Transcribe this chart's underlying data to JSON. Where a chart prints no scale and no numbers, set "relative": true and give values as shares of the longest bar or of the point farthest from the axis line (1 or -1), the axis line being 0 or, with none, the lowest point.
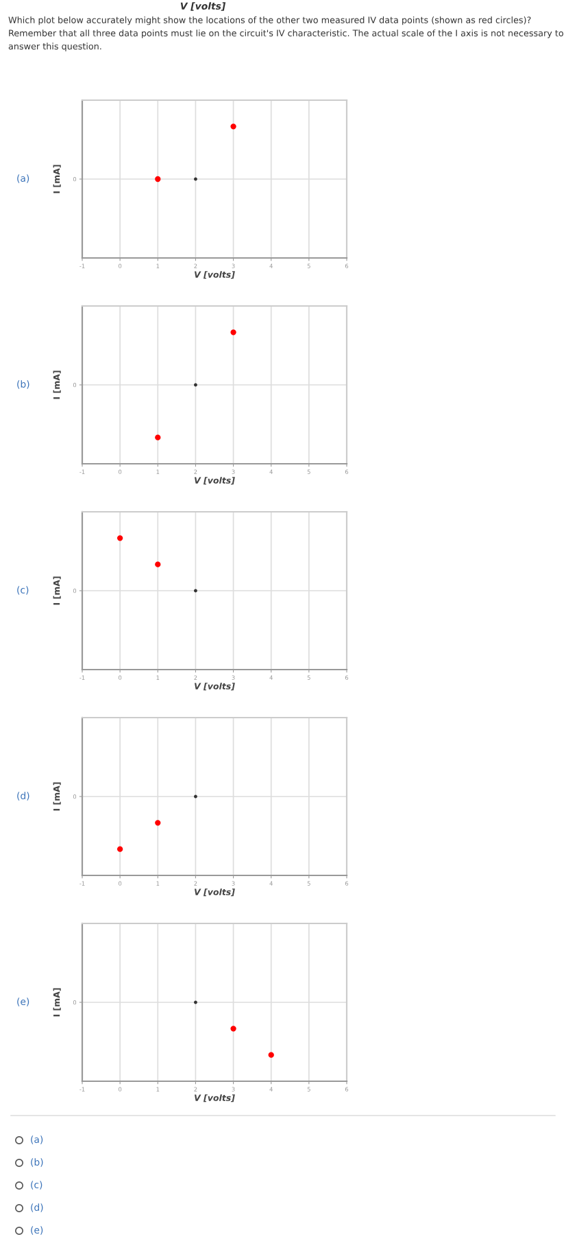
{
  "chart_data": [
    {
      "type": "scatter",
      "title": "(a)",
      "xlabel": "V [volts]",
      "ylabel": "I [mA]",
      "relative": true,
      "xlim": [
        -1,
        6
      ],
      "xticks": [
        -1,
        0,
        1,
        2,
        3,
        4,
        5,
        6
      ],
      "grid": "x",
      "marker": "circle",
      "annotations": [
        "V [volts]",
        "Which plot below accurately might show the locations of the other two measured IV data points (shown as red circles)? Remember that all three data points must lie on the circuit's IV characteristic. The actual scale of the I axis is not necessary to answer this question."
      ],
      "ref_lines": [
        {
          "axis": "y",
          "value": 0,
          "label": "0"
        }
      ],
      "series": [
        {
          "color": "#ff0000",
          "x": [
            1,
            3
          ],
          "values": [
            0,
            1
          ]
        },
        {
          "color": "#333333",
          "x": [
            2
          ],
          "values": [
            0
          ]
        }
      ]
    },
    {
      "type": "scatter",
      "title": "(b)",
      "xlabel": "V [volts]",
      "ylabel": "I [mA]",
      "relative": true,
      "xlim": [
        -1,
        6
      ],
      "xticks": [
        -1,
        0,
        1,
        2,
        3,
        4,
        5,
        6
      ],
      "grid": "x",
      "marker": "circle",
      "ref_lines": [
        {
          "axis": "y",
          "value": 0,
          "label": "0"
        }
      ],
      "series": [
        {
          "color": "#ff0000",
          "x": [
            1,
            3
          ],
          "values": [
            -1,
            1
          ]
        },
        {
          "color": "#333333",
          "x": [
            2
          ],
          "values": [
            0
          ]
        }
      ]
    },
    {
      "type": "scatter",
      "title": "(c)",
      "xlabel": "V [volts]",
      "ylabel": "I [mA]",
      "relative": true,
      "xlim": [
        -1,
        6
      ],
      "xticks": [
        -1,
        0,
        1,
        2,
        3,
        4,
        5,
        6
      ],
      "grid": "x",
      "marker": "circle",
      "ref_lines": [
        {
          "axis": "y",
          "value": 0,
          "label": "0"
        }
      ],
      "series": [
        {
          "color": "#ff0000",
          "x": [
            0,
            1
          ],
          "values": [
            1,
            0.5
          ]
        },
        {
          "color": "#333333",
          "x": [
            2
          ],
          "values": [
            0
          ]
        }
      ]
    },
    {
      "type": "scatter",
      "title": "(d)",
      "xlabel": "V [volts]",
      "ylabel": "I [mA]",
      "relative": true,
      "xlim": [
        -1,
        6
      ],
      "xticks": [
        -1,
        0,
        1,
        2,
        3,
        4,
        5,
        6
      ],
      "grid": "x",
      "marker": "circle",
      "ref_lines": [
        {
          "axis": "y",
          "value": 0,
          "label": "0"
        }
      ],
      "series": [
        {
          "color": "#ff0000",
          "x": [
            0,
            1
          ],
          "values": [
            -1,
            -0.5
          ]
        },
        {
          "color": "#333333",
          "x": [
            2
          ],
          "values": [
            0
          ]
        }
      ]
    },
    {
      "type": "scatter",
      "title": "(e)",
      "xlabel": "V [volts]",
      "ylabel": "I [mA]",
      "relative": true,
      "xlim": [
        -1,
        6
      ],
      "xticks": [
        -1,
        0,
        1,
        2,
        3,
        4,
        5,
        6
      ],
      "grid": "x",
      "marker": "circle",
      "annotations": [
        "(a)",
        "(b)",
        "(c)",
        "(d)",
        "(e)"
      ],
      "ref_lines": [
        {
          "axis": "y",
          "value": 0,
          "label": "0"
        }
      ],
      "series": [
        {
          "color": "#ff0000",
          "x": [
            3,
            4
          ],
          "values": [
            -0.5,
            -1
          ]
        },
        {
          "color": "#333333",
          "x": [
            2
          ],
          "values": [
            0
          ]
        }
      ]
    }
  ]
}
